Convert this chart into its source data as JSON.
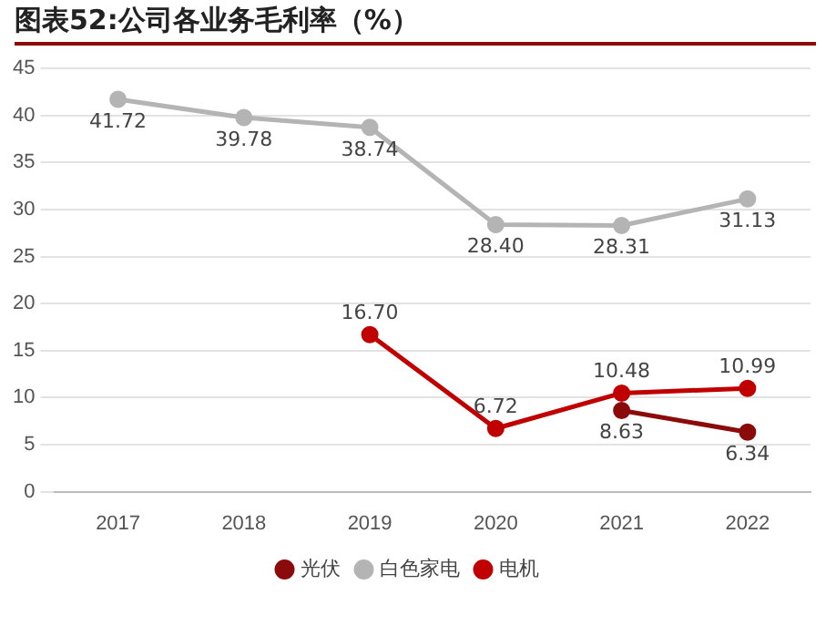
{
  "chart_data": {
    "type": "line",
    "title": "图表52:公司各业务毛利率（%）",
    "categories": [
      "2017",
      "2018",
      "2019",
      "2020",
      "2021",
      "2022"
    ],
    "series": [
      {
        "name": "光伏",
        "color": "#8b0a0a",
        "values": [
          null,
          null,
          null,
          null,
          8.63,
          6.34
        ],
        "value_labels": [
          null,
          null,
          null,
          null,
          "8.63",
          "6.34"
        ]
      },
      {
        "name": "白色家电",
        "color": "#b4b4b4",
        "values": [
          41.72,
          39.78,
          38.74,
          28.4,
          28.31,
          31.13
        ],
        "value_labels": [
          "41.72",
          "39.78",
          "38.74",
          "28.40",
          "28.31",
          "31.13"
        ]
      },
      {
        "name": "电机",
        "color": "#c00000",
        "values": [
          null,
          null,
          16.7,
          6.72,
          10.48,
          10.99
        ],
        "value_labels": [
          null,
          null,
          "16.70",
          "6.72",
          "10.48",
          "10.99"
        ]
      }
    ],
    "ylim": [
      0,
      45
    ],
    "yticks": [
      0,
      5,
      10,
      15,
      20,
      25,
      30,
      35,
      40,
      45
    ],
    "grid": "y",
    "legend": "bottom",
    "marker": "circle",
    "line_style": "solid"
  }
}
